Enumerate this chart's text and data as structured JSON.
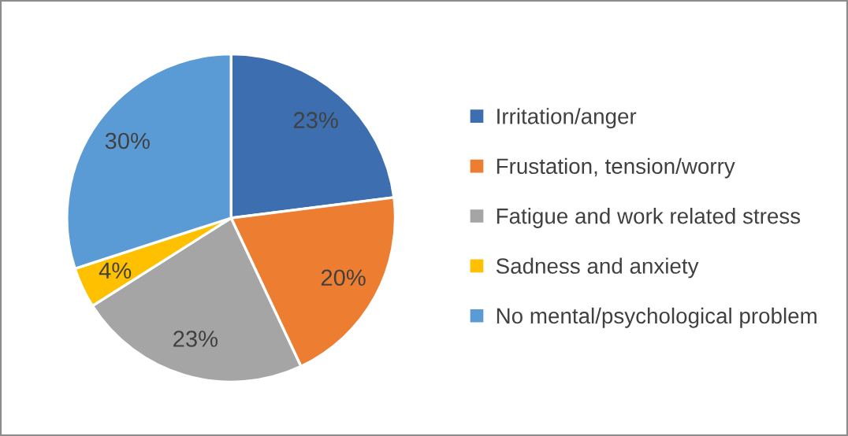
{
  "chart_data": {
    "type": "pie",
    "categories": [
      "Irritation/anger",
      "Frustation, tension/worry",
      "Fatigue and work related stress",
      "Sadness and anxiety",
      "No mental/psychological problem"
    ],
    "values": [
      23,
      20,
      23,
      4,
      30
    ],
    "value_labels": [
      "23%",
      "20%",
      "23%",
      "4%",
      "30%"
    ],
    "colors": [
      "#3d6fb0",
      "#ed7d31",
      "#a5a5a5",
      "#ffc000",
      "#5b9bd5"
    ],
    "legend": "right"
  }
}
